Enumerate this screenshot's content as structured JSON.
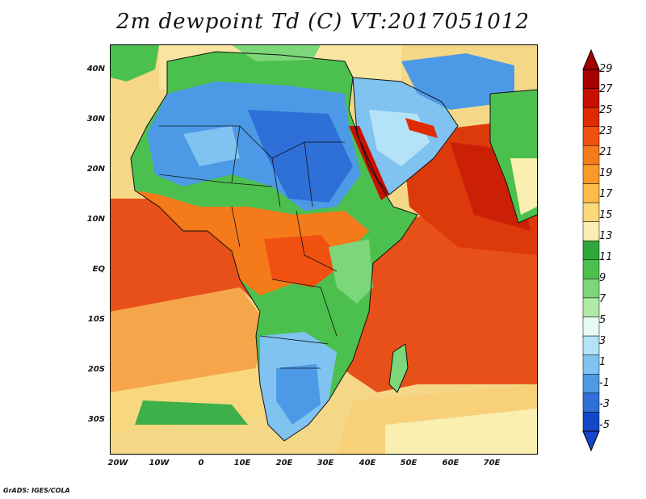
{
  "title": "2m dewpoint Td (C) VT:2017051012",
  "footer": "GrADS: IGES/COLA",
  "map": {
    "region": "Africa, Arabian Peninsula and Indian Ocean",
    "lon_range": [
      -23,
      80
    ],
    "lat_range": [
      -37,
      45
    ],
    "lat_labels": [
      "40N",
      "30N",
      "20N",
      "10N",
      "EQ",
      "10S",
      "20S",
      "30S"
    ],
    "lon_labels": [
      "20W",
      "10W",
      "0",
      "10E",
      "20E",
      "30E",
      "40E",
      "50E",
      "60E",
      "70E"
    ]
  },
  "colorbar": {
    "labels": [
      "29",
      "27",
      "25",
      "23",
      "21",
      "19",
      "17",
      "15",
      "13",
      "11",
      "9",
      "7",
      "5",
      "3",
      "1",
      "-1",
      "-3",
      "-5"
    ],
    "colors": [
      "#a50000",
      "#c81000",
      "#e02a00",
      "#f05010",
      "#f57a1a",
      "#fa9a28",
      "#fcbc48",
      "#fcd878",
      "#f8efb0",
      "#2fa83a",
      "#4cc04e",
      "#7cd67a",
      "#b0eaa6",
      "#e6faf0",
      "#b4e2f8",
      "#80c2f0",
      "#4c9ae6",
      "#2e6fd8",
      "#1447c8"
    ]
  }
}
